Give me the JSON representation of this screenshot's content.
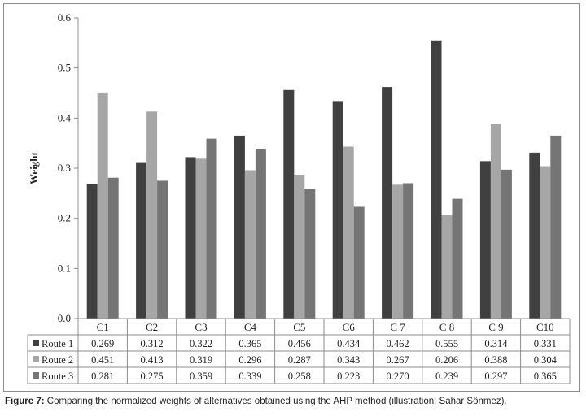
{
  "chart_data": {
    "type": "bar",
    "ylabel": "Weight",
    "ylim": [
      0,
      0.6
    ],
    "yticks": [
      0.0,
      0.1,
      0.2,
      0.3,
      0.4,
      0.5,
      0.6
    ],
    "ytick_labels": [
      "0.0",
      "0.1",
      "0.2",
      "0.3",
      "0.4",
      "0.5",
      "0.6"
    ],
    "categories": [
      "C1",
      "C2",
      "C3",
      "C4",
      "C5",
      "C6",
      "C 7",
      "C 8",
      "C 9",
      "C10"
    ],
    "series": [
      {
        "name": "Route 1",
        "color": "#404040",
        "values": [
          0.269,
          0.312,
          0.322,
          0.365,
          0.456,
          0.434,
          0.462,
          0.555,
          0.314,
          0.331
        ],
        "labels": [
          "0.269",
          "0.312",
          "0.322",
          "0.365",
          "0.456",
          "0.434",
          "0.462",
          "0.555",
          "0.314",
          "0.331"
        ]
      },
      {
        "name": "Route 2",
        "color": "#a6a6a6",
        "values": [
          0.451,
          0.413,
          0.319,
          0.296,
          0.287,
          0.343,
          0.267,
          0.206,
          0.388,
          0.304
        ],
        "labels": [
          "0.451",
          "0.413",
          "0.319",
          "0.296",
          "0.287",
          "0.343",
          "0.267",
          "0.206",
          "0.388",
          "0.304"
        ]
      },
      {
        "name": "Route 3",
        "color": "#757575",
        "values": [
          0.281,
          0.275,
          0.359,
          0.339,
          0.258,
          0.223,
          0.27,
          0.239,
          0.297,
          0.365
        ],
        "labels": [
          "0.281",
          "0.275",
          "0.359",
          "0.339",
          "0.258",
          "0.223",
          "0.270",
          "0.239",
          "0.297",
          "0.365"
        ]
      }
    ],
    "grid": false,
    "legend": "data-table"
  },
  "caption": {
    "label": "Figure 7:",
    "text": " Comparing the normalized weights of alternatives obtained using the AHP method (illustration: Sahar Sönmez)."
  }
}
